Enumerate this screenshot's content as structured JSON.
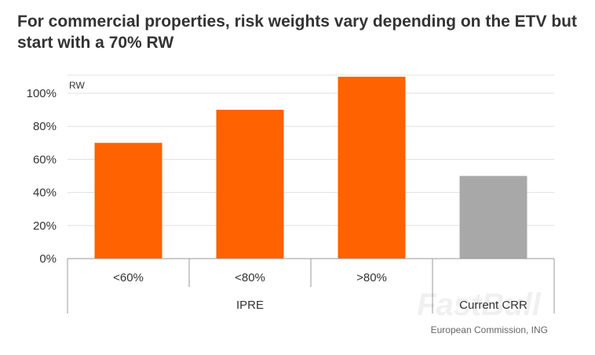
{
  "title": "For commercial properties, risk weights vary depending on the ETV but start with a 70% RW",
  "source": "European Commission, ING",
  "watermark": "FastBull",
  "chart_data": {
    "type": "bar",
    "ylabel": "RW",
    "ylim": [
      0,
      100
    ],
    "yticks": [
      "0%",
      "20%",
      "40%",
      "60%",
      "80%",
      "100%"
    ],
    "grid": true,
    "categories": [
      "<60%",
      "<80%",
      ">80%",
      ""
    ],
    "values": [
      70,
      90,
      110,
      50
    ],
    "bar_colors": [
      "#FF6200",
      "#FF6200",
      "#FF6200",
      "#A8A8A8"
    ],
    "groups": [
      {
        "label": "IPRE",
        "span": 3
      },
      {
        "label": "Current CRR",
        "span": 1
      }
    ]
  },
  "colors": {
    "accent": "#FF6200",
    "neutral": "#A8A8A8",
    "grid": "#E0E0E0",
    "axis": "#999999"
  }
}
